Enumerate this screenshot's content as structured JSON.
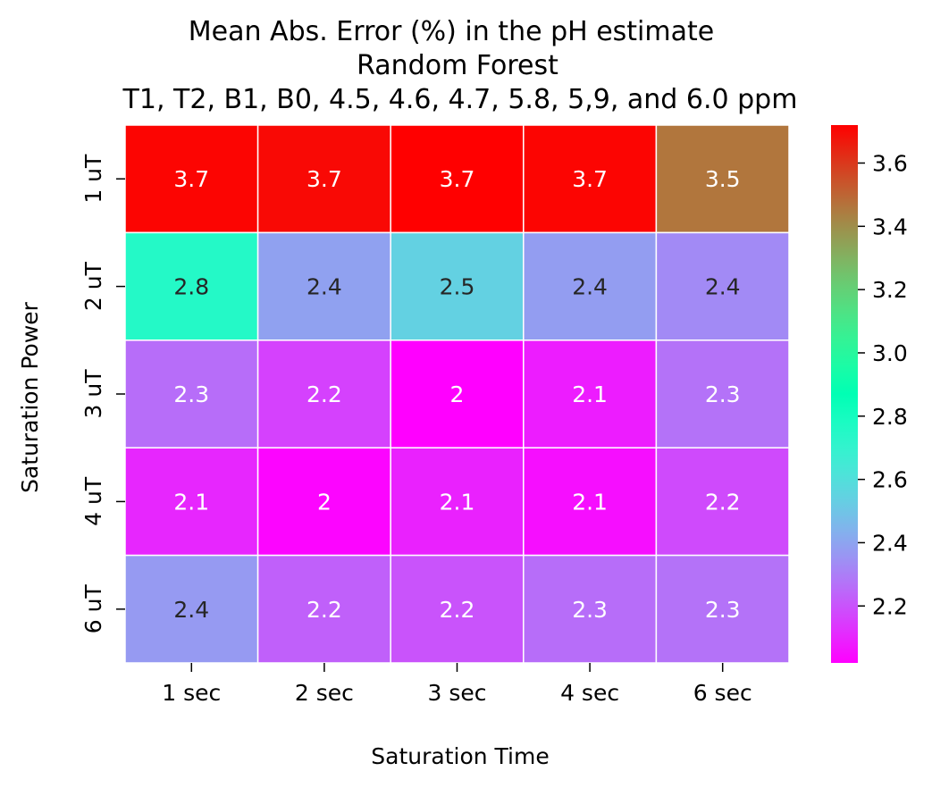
{
  "chart_data": {
    "type": "heatmap",
    "title_lines": [
      "Mean Abs. Error (%) in the pH estimate",
      "Random Forest",
      "T1, T2, B1, B0, 4.5, 4.6, 4.7, 5.8, 5,9, and 6.0 ppm"
    ],
    "xlabel": "Saturation Time",
    "ylabel": "Saturation Power",
    "x_categories": [
      "1 sec",
      "2 sec",
      "3 sec",
      "4 sec",
      "6 sec"
    ],
    "y_categories": [
      "1 uT",
      "2 uT",
      "3 uT",
      "4 uT",
      "6 uT"
    ],
    "values": [
      [
        3.71,
        3.7,
        3.72,
        3.71,
        3.46
      ],
      [
        2.75,
        2.39,
        2.54,
        2.38,
        2.33
      ],
      [
        2.26,
        2.16,
        2.02,
        2.08,
        2.27
      ],
      [
        2.1,
        2.03,
        2.09,
        2.05,
        2.18
      ],
      [
        2.37,
        2.23,
        2.2,
        2.26,
        2.27
      ]
    ],
    "annotations": [
      [
        "3.7",
        "3.7",
        "3.7",
        "3.7",
        "3.5"
      ],
      [
        "2.8",
        "2.4",
        "2.5",
        "2.4",
        "2.4"
      ],
      [
        "2.3",
        "2.2",
        "2",
        "2.1",
        "2.3"
      ],
      [
        "2.1",
        "2",
        "2.1",
        "2.1",
        "2.2"
      ],
      [
        "2.4",
        "2.2",
        "2.2",
        "2.3",
        "2.3"
      ]
    ],
    "colormap": "rainbow",
    "color_range": [
      2.02,
      3.72
    ],
    "colorbar_ticks": [
      2.2,
      2.4,
      2.6,
      2.8,
      3.0,
      3.2,
      3.4,
      3.6
    ],
    "colorbar_tick_labels": [
      "2.2",
      "2.4",
      "2.6",
      "2.8",
      "3.0",
      "3.2",
      "3.4",
      "3.6"
    ],
    "cell_border_color": "#ffffff",
    "annotation_light_color": "#ffffff",
    "annotation_dark_color": "#262626"
  }
}
